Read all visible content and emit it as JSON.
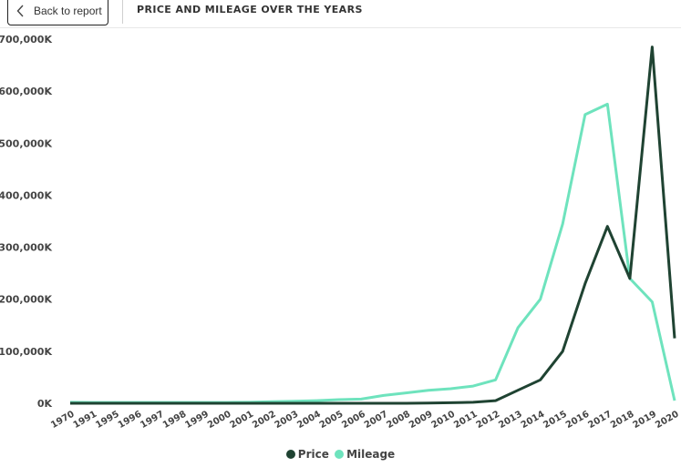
{
  "header": {
    "back_label": "Back to report",
    "title": "PRICE AND MILEAGE OVER THE YEARS"
  },
  "chart_data": {
    "type": "line",
    "title": "PRICE AND MILEAGE OVER THE YEARS",
    "categories": [
      "1970",
      "1991",
      "1995",
      "1996",
      "1997",
      "1998",
      "1999",
      "2000",
      "2001",
      "2002",
      "2003",
      "2004",
      "2005",
      "2006",
      "2007",
      "2008",
      "2009",
      "2010",
      "2011",
      "2012",
      "2013",
      "2014",
      "2015",
      "2016",
      "2017",
      "2018",
      "2019",
      "2020"
    ],
    "series": [
      {
        "name": "Price",
        "color": "#1f4332",
        "values": [
          0,
          0,
          0,
          0,
          0,
          0,
          0,
          0,
          0,
          0,
          0,
          0,
          0,
          0,
          0,
          0,
          500,
          1000,
          2000,
          5000,
          25000,
          45000,
          100000,
          230000,
          340000,
          240000,
          685000,
          125000
        ]
      },
      {
        "name": "Mileage",
        "color": "#6ee3bd",
        "values": [
          2000,
          1500,
          1500,
          1500,
          1500,
          1500,
          1500,
          1500,
          2000,
          3000,
          4000,
          5000,
          7000,
          8000,
          15000,
          20000,
          25000,
          28000,
          33000,
          45000,
          145000,
          200000,
          345000,
          555000,
          575000,
          240000,
          195000,
          5000
        ]
      }
    ],
    "y_tick_labels": [
      "0K",
      "100,000K",
      "200,000K",
      "300,000K",
      "400,000K",
      "500,000K",
      "600,000K",
      "700,000K"
    ],
    "ylim": [
      0,
      700000
    ],
    "grid": false,
    "legend_position": "bottom-center"
  }
}
